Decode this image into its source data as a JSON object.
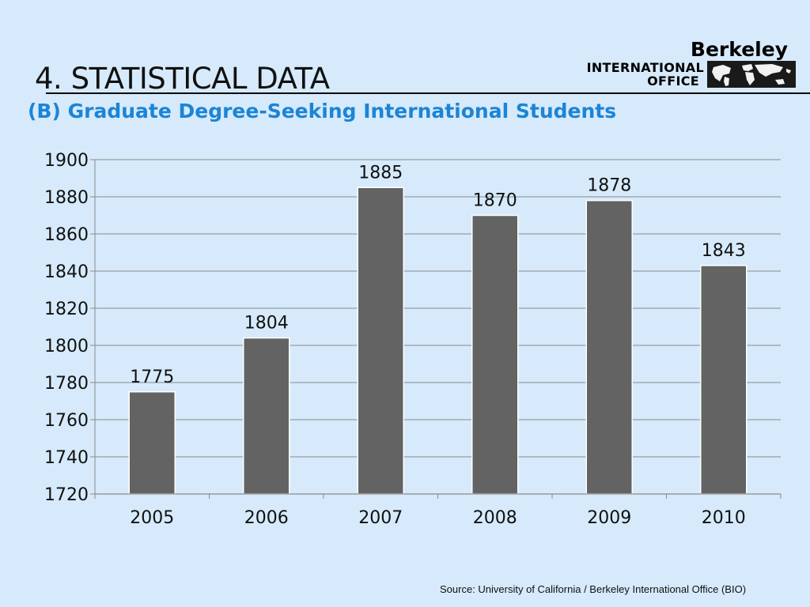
{
  "slide": {
    "title": "4. STATISTICAL DATA",
    "subtitle": "(B) Graduate Degree-Seeking International Students",
    "source": "Source:  University of California / Berkeley International Office (BIO)"
  },
  "logo": {
    "line1": "Berkeley",
    "line2": "INTERNATIONAL",
    "line3": "OFFICE",
    "icon": "world-map-icon"
  },
  "colors": {
    "background": "#d6eafb",
    "bar": "#636363",
    "subtitle": "#1c84d6",
    "grid": "#8a8a8a"
  },
  "chart_data": {
    "type": "bar",
    "categories": [
      "2005",
      "2006",
      "2007",
      "2008",
      "2009",
      "2010"
    ],
    "values": [
      1775,
      1804,
      1885,
      1870,
      1878,
      1843
    ],
    "ylim": [
      1720,
      1900
    ],
    "yticks": [
      1720,
      1740,
      1760,
      1780,
      1800,
      1820,
      1840,
      1860,
      1880,
      1900
    ],
    "grid": true,
    "data_labels": true,
    "title": "",
    "xlabel": "",
    "ylabel": ""
  }
}
